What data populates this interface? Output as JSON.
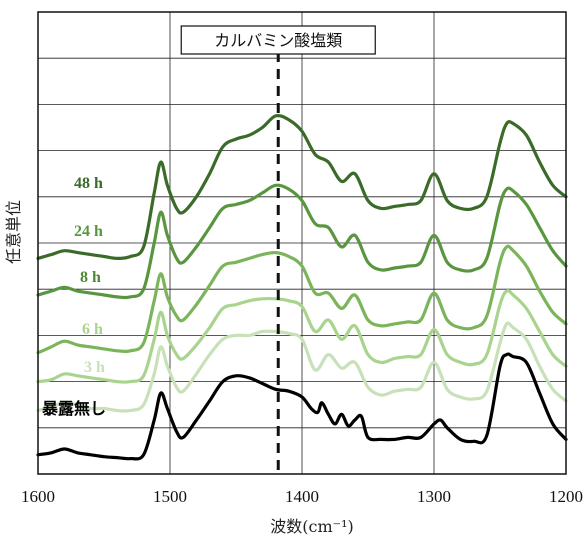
{
  "chart_data": {
    "type": "line",
    "xlabel": "波数(cm⁻¹)",
    "ylabel": "任意単位",
    "xlim": [
      1600,
      1200
    ],
    "x_reversed": true,
    "x_ticks": [
      "1600",
      "1500",
      "1400",
      "1300",
      "1200"
    ],
    "y_ticks_shown": false,
    "grid": true,
    "annotation": {
      "text": "カルバミン酸塩類",
      "x": 1418,
      "style": "dashed-vertical-line"
    },
    "series": [
      {
        "name": "暴露無し",
        "color": "#000000",
        "x": [
          1600,
          1590,
          1580,
          1570,
          1560,
          1550,
          1540,
          1530,
          1520,
          1512,
          1507,
          1502,
          1495,
          1490,
          1480,
          1470,
          1460,
          1450,
          1440,
          1430,
          1420,
          1410,
          1400,
          1393,
          1388,
          1385,
          1380,
          1375,
          1370,
          1365,
          1360,
          1355,
          1350,
          1340,
          1330,
          1320,
          1310,
          1300,
          1295,
          1290,
          1280,
          1270,
          1260,
          1250,
          1245,
          1240,
          1230,
          1220,
          1210,
          1200
        ],
        "y": [
          0.1,
          0.11,
          0.13,
          0.11,
          0.1,
          0.09,
          0.085,
          0.08,
          0.1,
          0.28,
          0.42,
          0.34,
          0.22,
          0.19,
          0.28,
          0.38,
          0.48,
          0.51,
          0.5,
          0.47,
          0.44,
          0.43,
          0.4,
          0.34,
          0.32,
          0.37,
          0.31,
          0.26,
          0.31,
          0.25,
          0.28,
          0.3,
          0.19,
          0.18,
          0.18,
          0.19,
          0.19,
          0.26,
          0.28,
          0.24,
          0.18,
          0.17,
          0.2,
          0.56,
          0.62,
          0.61,
          0.58,
          0.42,
          0.26,
          0.18
        ]
      },
      {
        "name": "3 h",
        "color": "#c8e1b8",
        "x": [
          1600,
          1590,
          1580,
          1570,
          1560,
          1550,
          1540,
          1530,
          1520,
          1512,
          1507,
          1502,
          1495,
          1490,
          1480,
          1470,
          1460,
          1450,
          1440,
          1430,
          1420,
          1410,
          1400,
          1390,
          1380,
          1370,
          1360,
          1350,
          1340,
          1330,
          1320,
          1310,
          1300,
          1290,
          1280,
          1270,
          1260,
          1250,
          1245,
          1240,
          1230,
          1220,
          1210,
          1200
        ],
        "y": [
          0.33,
          0.35,
          0.37,
          0.36,
          0.34,
          0.34,
          0.33,
          0.33,
          0.36,
          0.52,
          0.66,
          0.56,
          0.45,
          0.43,
          0.52,
          0.62,
          0.7,
          0.72,
          0.72,
          0.74,
          0.74,
          0.73,
          0.7,
          0.54,
          0.62,
          0.55,
          0.58,
          0.45,
          0.41,
          0.43,
          0.44,
          0.45,
          0.58,
          0.44,
          0.4,
          0.39,
          0.43,
          0.68,
          0.78,
          0.76,
          0.7,
          0.56,
          0.44,
          0.38
        ]
      },
      {
        "name": "6 h",
        "color": "#a9d48e",
        "x": [
          1600,
          1590,
          1580,
          1570,
          1560,
          1550,
          1540,
          1530,
          1520,
          1512,
          1507,
          1502,
          1495,
          1490,
          1480,
          1470,
          1460,
          1450,
          1440,
          1430,
          1420,
          1410,
          1400,
          1390,
          1380,
          1370,
          1360,
          1350,
          1340,
          1330,
          1320,
          1310,
          1300,
          1290,
          1280,
          1270,
          1260,
          1250,
          1245,
          1240,
          1230,
          1220,
          1210,
          1200
        ],
        "y": [
          0.48,
          0.49,
          0.52,
          0.51,
          0.5,
          0.49,
          0.48,
          0.48,
          0.51,
          0.7,
          0.84,
          0.72,
          0.62,
          0.6,
          0.67,
          0.76,
          0.86,
          0.88,
          0.9,
          0.91,
          0.91,
          0.9,
          0.87,
          0.74,
          0.8,
          0.7,
          0.77,
          0.62,
          0.58,
          0.6,
          0.61,
          0.62,
          0.75,
          0.62,
          0.58,
          0.57,
          0.62,
          0.88,
          0.95,
          0.93,
          0.86,
          0.74,
          0.62,
          0.56
        ]
      },
      {
        "name": "8 h",
        "color": "#7bb55b",
        "x": [
          1600,
          1590,
          1580,
          1570,
          1560,
          1550,
          1540,
          1530,
          1520,
          1512,
          1507,
          1502,
          1495,
          1490,
          1480,
          1470,
          1460,
          1450,
          1440,
          1430,
          1420,
          1410,
          1400,
          1390,
          1380,
          1370,
          1360,
          1350,
          1340,
          1330,
          1320,
          1310,
          1300,
          1290,
          1280,
          1270,
          1260,
          1250,
          1245,
          1240,
          1230,
          1220,
          1210,
          1200
        ],
        "y": [
          0.63,
          0.66,
          0.69,
          0.67,
          0.66,
          0.65,
          0.64,
          0.64,
          0.68,
          0.9,
          1.04,
          0.92,
          0.82,
          0.8,
          0.88,
          0.98,
          1.08,
          1.1,
          1.12,
          1.14,
          1.15,
          1.13,
          1.08,
          0.94,
          0.94,
          0.86,
          0.93,
          0.8,
          0.77,
          0.78,
          0.79,
          0.8,
          0.94,
          0.8,
          0.76,
          0.76,
          0.82,
          1.1,
          1.18,
          1.16,
          1.08,
          0.95,
          0.84,
          0.78
        ]
      },
      {
        "name": "24 h",
        "color": "#5a9640",
        "x": [
          1600,
          1590,
          1580,
          1570,
          1560,
          1550,
          1540,
          1530,
          1520,
          1512,
          1507,
          1502,
          1495,
          1490,
          1480,
          1470,
          1460,
          1450,
          1440,
          1430,
          1420,
          1410,
          1400,
          1390,
          1380,
          1370,
          1360,
          1350,
          1340,
          1330,
          1320,
          1310,
          1300,
          1290,
          1280,
          1270,
          1260,
          1250,
          1245,
          1240,
          1230,
          1220,
          1210,
          1200
        ],
        "y": [
          0.93,
          0.95,
          0.97,
          0.95,
          0.94,
          0.93,
          0.92,
          0.92,
          0.96,
          1.2,
          1.36,
          1.24,
          1.12,
          1.1,
          1.18,
          1.28,
          1.38,
          1.4,
          1.42,
          1.46,
          1.5,
          1.48,
          1.42,
          1.3,
          1.28,
          1.18,
          1.24,
          1.1,
          1.06,
          1.07,
          1.08,
          1.1,
          1.24,
          1.1,
          1.06,
          1.06,
          1.12,
          1.4,
          1.48,
          1.47,
          1.4,
          1.28,
          1.16,
          1.08
        ]
      },
      {
        "name": "48 h",
        "color": "#3b6b28",
        "x": [
          1600,
          1590,
          1580,
          1570,
          1560,
          1550,
          1540,
          1530,
          1520,
          1512,
          1507,
          1502,
          1495,
          1490,
          1480,
          1470,
          1460,
          1450,
          1440,
          1430,
          1420,
          1410,
          1400,
          1390,
          1380,
          1370,
          1360,
          1350,
          1340,
          1330,
          1320,
          1310,
          1300,
          1290,
          1280,
          1270,
          1260,
          1250,
          1245,
          1240,
          1230,
          1220,
          1210,
          1200
        ],
        "y": [
          1.12,
          1.14,
          1.16,
          1.15,
          1.14,
          1.13,
          1.12,
          1.13,
          1.18,
          1.46,
          1.62,
          1.5,
          1.38,
          1.36,
          1.44,
          1.56,
          1.7,
          1.74,
          1.76,
          1.8,
          1.86,
          1.84,
          1.78,
          1.66,
          1.62,
          1.52,
          1.56,
          1.42,
          1.38,
          1.39,
          1.4,
          1.42,
          1.56,
          1.42,
          1.38,
          1.38,
          1.44,
          1.72,
          1.82,
          1.82,
          1.76,
          1.62,
          1.5,
          1.44
        ]
      }
    ]
  },
  "series_labels": [
    {
      "text": "48 h",
      "color": "#3b6b28"
    },
    {
      "text": "24 h",
      "color": "#5a9640"
    },
    {
      "text": "8 h",
      "color": "#4f8a36"
    },
    {
      "text": "6 h",
      "color": "#a9d48e"
    },
    {
      "text": "3 h",
      "color": "#c8e1b8"
    },
    {
      "text": "暴露無し",
      "color": "#000000"
    }
  ]
}
